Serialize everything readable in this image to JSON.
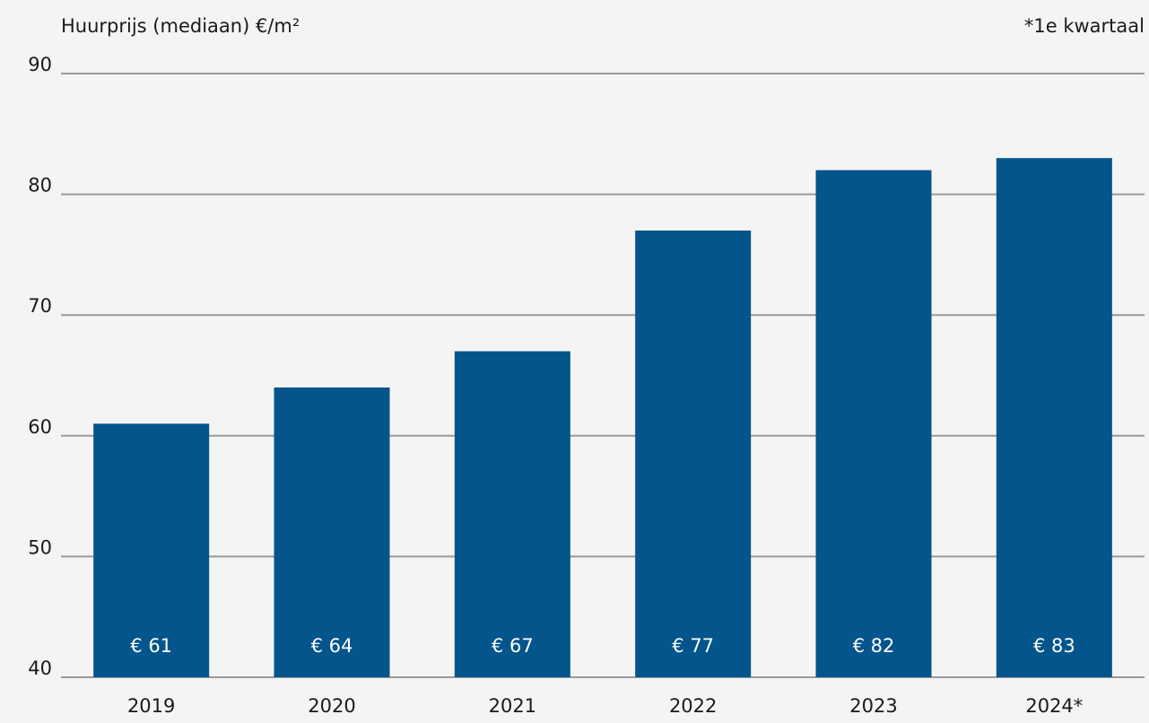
{
  "chart_data": {
    "type": "bar",
    "ylabel": "Huurprijs (mediaan) €/m²",
    "note": "*1e kwartaal",
    "categories": [
      "2019",
      "2020",
      "2021",
      "2022",
      "2023",
      "2024*"
    ],
    "values": [
      61,
      64,
      67,
      77,
      82,
      83
    ],
    "data_labels": [
      "€ 61",
      "€ 64",
      "€ 67",
      "€ 77",
      "€ 82",
      "€ 83"
    ],
    "yticks": [
      40,
      50,
      60,
      70,
      80,
      90
    ],
    "ylim": [
      40,
      90
    ],
    "grid": true,
    "colors": {
      "bar": "#03558b",
      "grid": "#9a9a9a",
      "background": "#f4f4f4"
    }
  }
}
